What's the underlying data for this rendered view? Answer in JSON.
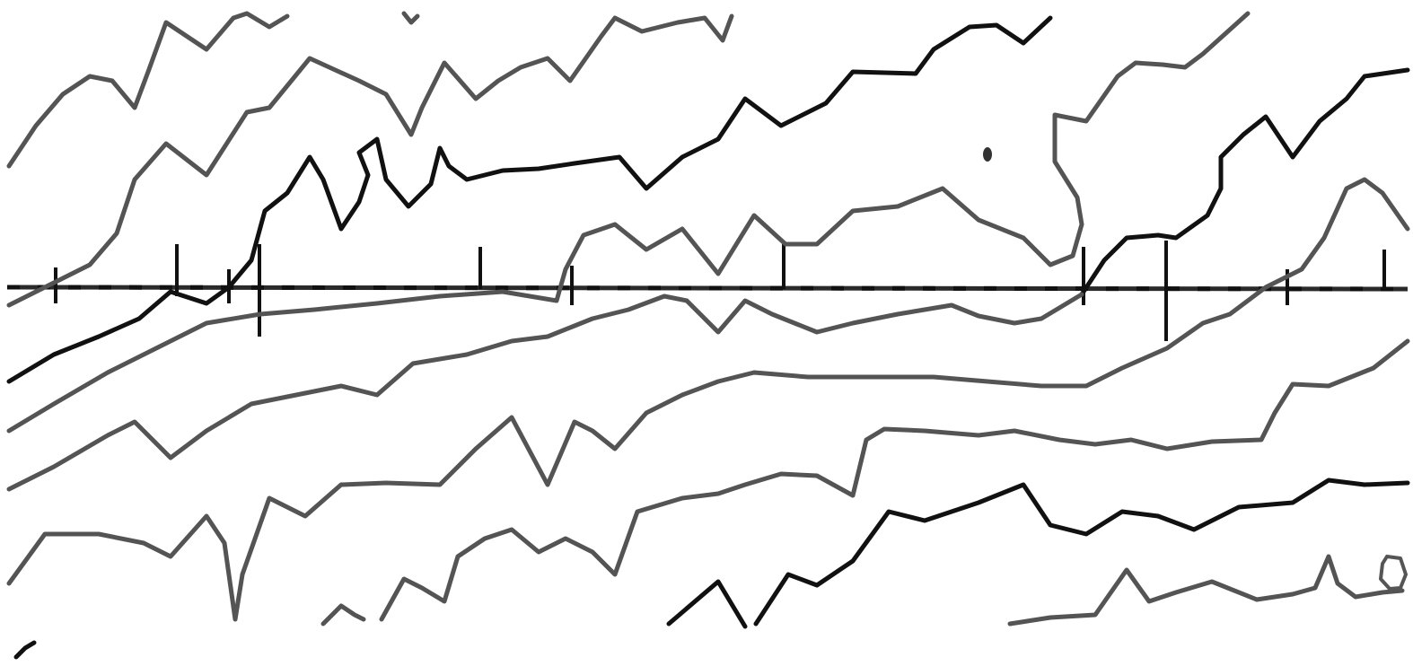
{
  "map": {
    "type": "contour-line-drawing",
    "background": "#ffffff",
    "line_colors": {
      "dark": "#111111",
      "gray": "#545454"
    },
    "has_labels": false,
    "contour_line_count": 12,
    "reference_line": {
      "orientation": "horizontal",
      "tick_marks": 13
    }
  }
}
